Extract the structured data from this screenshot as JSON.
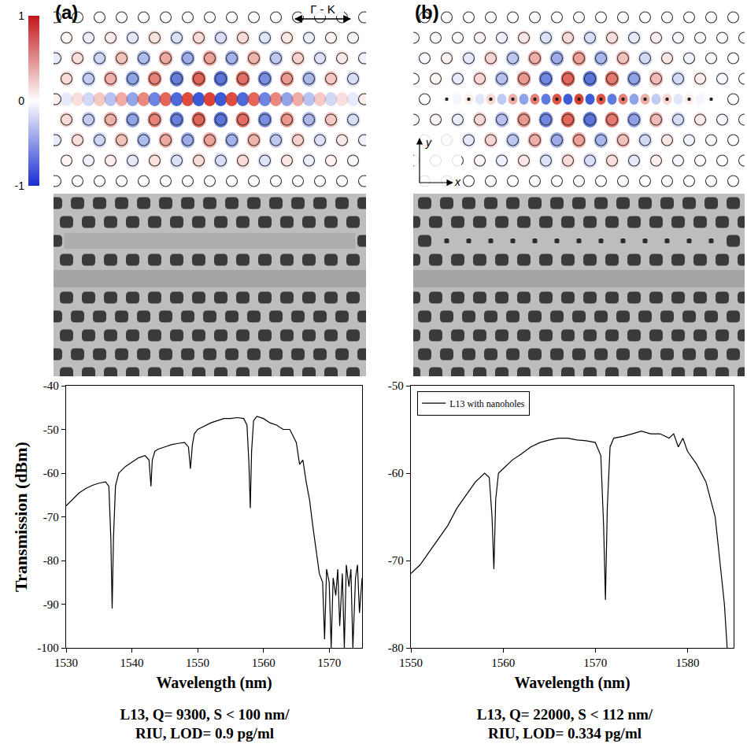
{
  "chart_data": [
    {
      "type": "line",
      "x_title": "Wavelength (nm)",
      "y_title": "Transmission (dBm)",
      "xlim": [
        1530,
        1575
      ],
      "xticks": [
        1530,
        1540,
        1550,
        1560,
        1570
      ],
      "ylim": [
        -100,
        -40
      ],
      "yticks": [
        -100,
        -90,
        -80,
        -70,
        -60,
        -50,
        -40
      ],
      "grid": false,
      "x": [
        1530,
        1531,
        1532,
        1533,
        1534,
        1535,
        1536,
        1536.5,
        1536.8,
        1537,
        1537.2,
        1537.5,
        1538,
        1539,
        1540,
        1541,
        1542,
        1542.6,
        1542.9,
        1543.1,
        1543.5,
        1544,
        1545,
        1546,
        1547,
        1548,
        1548.6,
        1548.9,
        1549.2,
        1549.5,
        1550,
        1551,
        1552,
        1553,
        1554,
        1555,
        1556,
        1557,
        1557.5,
        1557.8,
        1558,
        1558.2,
        1558.5,
        1559,
        1560,
        1561,
        1562,
        1563,
        1564,
        1564.5,
        1565,
        1565.5,
        1566,
        1566.5,
        1567,
        1567.5,
        1568,
        1568.5,
        1569,
        1569.3,
        1569.6,
        1570,
        1570.3,
        1570.6,
        1571,
        1571.3,
        1571.6,
        1572,
        1572.3,
        1572.6,
        1573,
        1573.3,
        1573.6,
        1574,
        1574.3,
        1574.6,
        1575
      ],
      "series": [
        {
          "color": "#000000",
          "line_style": "solid",
          "values": [
            -67.5,
            -66,
            -64.5,
            -63.5,
            -62.8,
            -62.3,
            -62,
            -63,
            -75,
            -91,
            -75,
            -63,
            -60,
            -58.5,
            -57.5,
            -56.5,
            -56,
            -57,
            -63,
            -57,
            -55,
            -54.5,
            -54,
            -53.5,
            -53.2,
            -53,
            -54,
            -59,
            -53.5,
            -51,
            -50,
            -49.3,
            -48.5,
            -48,
            -47.5,
            -47.5,
            -47.3,
            -47.5,
            -49,
            -58,
            -68,
            -55,
            -48,
            -47,
            -47.5,
            -48.5,
            -49,
            -50,
            -50,
            -51.5,
            -53,
            -58,
            -57,
            -62,
            -66,
            -72,
            -78,
            -83,
            -85,
            -98,
            -82,
            -85,
            -100,
            -84,
            -88,
            -82,
            -95,
            -83,
            -100,
            -81,
            -86,
            -82,
            -100,
            -84,
            -81,
            -92,
            -84
          ]
        }
      ]
    },
    {
      "type": "line",
      "x_title": "Wavelength (nm)",
      "xlim": [
        1550,
        1585
      ],
      "xticks": [
        1550,
        1560,
        1570,
        1580
      ],
      "ylim": [
        -80,
        -50
      ],
      "yticks": [
        -80,
        -70,
        -60,
        -50
      ],
      "grid": false,
      "legend": "upper left",
      "x": [
        1550,
        1551,
        1552,
        1553,
        1554,
        1555,
        1556,
        1557,
        1558,
        1558.5,
        1558.8,
        1559,
        1559.2,
        1559.5,
        1560,
        1561,
        1562,
        1563,
        1564,
        1565,
        1566,
        1567,
        1568,
        1569,
        1570,
        1570.6,
        1570.9,
        1571.1,
        1571.3,
        1571.6,
        1572,
        1573,
        1574,
        1575,
        1576,
        1577,
        1578,
        1578.5,
        1579,
        1579.5,
        1580,
        1581,
        1582,
        1582.5,
        1583,
        1583.5,
        1584,
        1584.3
      ],
      "series": [
        {
          "name": "L13 with nanoholes",
          "color": "#000000",
          "line_style": "solid",
          "values": [
            -71.5,
            -70.5,
            -69,
            -67.5,
            -66,
            -64,
            -62.5,
            -61,
            -60,
            -60.5,
            -65,
            -71,
            -63,
            -60,
            -59.5,
            -58.5,
            -57.8,
            -57,
            -56.5,
            -56.2,
            -56,
            -56,
            -56.2,
            -56.3,
            -56.5,
            -58,
            -66,
            -74.5,
            -64,
            -57,
            -56,
            -55.8,
            -55.5,
            -55.2,
            -55.5,
            -55.5,
            -56,
            -55.5,
            -57,
            -56,
            -57.5,
            -59,
            -61,
            -63,
            -65,
            -70,
            -75,
            -80
          ]
        }
      ]
    }
  ],
  "panels": [
    {
      "label": "(a)",
      "field_map": {
        "direction_label": "Γ - K"
      },
      "caption": [
        "L13, Q= 9300, S < 100 nm/",
        "RIU, LOD= 0.9 pg/ml"
      ]
    },
    {
      "label": "(b)",
      "field_map": {
        "axis_labels": {
          "y": "y",
          "x": "x"
        }
      },
      "caption": [
        "L13, Q= 22000, S < 112 nm/",
        "RIU, LOD= 0.334 pg/ml"
      ]
    }
  ],
  "colorbar": {
    "range": [
      -1,
      1
    ],
    "ticks": [
      1,
      0,
      -1
    ]
  }
}
